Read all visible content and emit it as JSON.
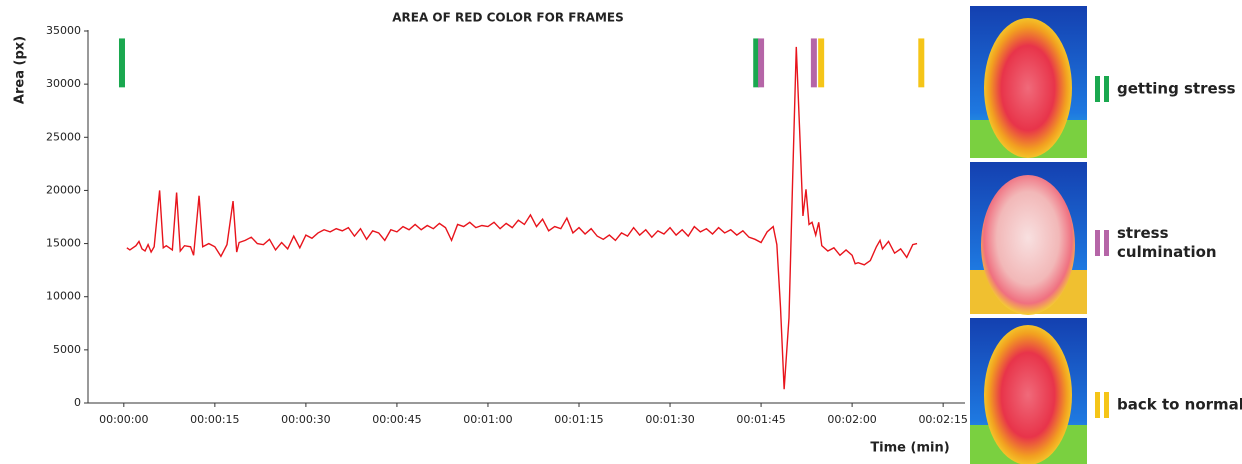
{
  "chart_data": {
    "type": "line",
    "title": "AREA OF RED COLOR FOR FRAMES",
    "y_label": "Area (px)",
    "x_label": "Time (min)",
    "xlim": [
      -5.9,
      138.6
    ],
    "ylim": [
      0,
      35000
    ],
    "yticks": [
      0,
      5000,
      10000,
      15000,
      20000,
      25000,
      30000,
      35000
    ],
    "xticks": [
      {
        "value": 0,
        "label": "00:00:00"
      },
      {
        "value": 15,
        "label": "00:00:15"
      },
      {
        "value": 30,
        "label": "00:00:30"
      },
      {
        "value": 45,
        "label": "00:00:45"
      },
      {
        "value": 60,
        "label": "00:01:00"
      },
      {
        "value": 75,
        "label": "00:01:15"
      },
      {
        "value": 90,
        "label": "00:01:30"
      },
      {
        "value": 105,
        "label": "00:01:45"
      },
      {
        "value": 120,
        "label": "00:02:00"
      },
      {
        "value": 135,
        "label": "00:02:15"
      }
    ],
    "x": [
      0.5,
      1,
      2,
      2.5,
      3,
      3.5,
      4,
      4.5,
      5,
      5.9,
      6.5,
      7,
      8,
      8.7,
      9.3,
      10,
      11,
      11.5,
      12.4,
      13,
      14,
      15,
      16,
      17,
      18,
      18.6,
      19,
      20,
      21,
      22,
      23,
      24,
      25,
      26,
      27,
      28,
      29,
      30,
      31,
      32,
      33,
      34,
      35,
      36,
      37,
      38,
      39,
      40,
      41,
      42,
      43,
      44,
      45,
      46,
      47,
      48,
      49,
      50,
      51,
      52,
      53,
      54,
      55,
      56,
      57,
      58,
      59,
      60,
      61,
      62,
      63,
      64,
      65,
      66,
      67,
      68,
      69,
      70,
      71,
      72,
      73,
      74,
      75,
      76,
      77,
      78,
      79,
      80,
      81,
      82,
      83,
      84,
      85,
      86,
      87,
      88,
      89,
      90,
      91,
      92,
      93,
      94,
      95,
      96,
      97,
      98,
      99,
      100,
      101,
      102,
      103,
      104,
      105,
      106,
      107,
      107.6,
      108.2,
      108.8,
      109.6,
      110.2,
      110.8,
      111.4,
      111.9,
      112.4,
      112.9,
      113.4,
      114,
      114.5,
      115,
      116,
      117,
      118,
      119,
      120,
      120.5,
      121,
      122,
      123,
      124,
      124.6,
      125,
      126,
      127,
      128,
      129,
      130,
      130.7
    ],
    "series": [
      {
        "color": "#e8141c",
        "values": [
          14600,
          14400,
          14800,
          15200,
          14500,
          14300,
          14900,
          14200,
          14700,
          20000,
          14600,
          14800,
          14400,
          19800,
          14300,
          14800,
          14700,
          13900,
          19500,
          14700,
          15000,
          14700,
          13800,
          14900,
          19000,
          14200,
          15100,
          15300,
          15600,
          15000,
          14900,
          15400,
          14400,
          15100,
          14500,
          15700,
          14600,
          15800,
          15500,
          16000,
          16300,
          16100,
          16400,
          16200,
          16500,
          15700,
          16400,
          15400,
          16200,
          16000,
          15300,
          16300,
          16100,
          16600,
          16300,
          16800,
          16300,
          16700,
          16400,
          16900,
          16500,
          15300,
          16800,
          16600,
          17000,
          16500,
          16700,
          16600,
          17000,
          16400,
          16900,
          16500,
          17200,
          16800,
          17700,
          16600,
          17300,
          16200,
          16600,
          16400,
          17400,
          16000,
          16500,
          15900,
          16400,
          15700,
          15400,
          15800,
          15300,
          16000,
          15700,
          16500,
          15800,
          16300,
          15600,
          16200,
          15900,
          16500,
          15800,
          16300,
          15700,
          16600,
          16100,
          16400,
          15900,
          16500,
          16000,
          16300,
          15800,
          16200,
          15600,
          15400,
          15100,
          16100,
          16600,
          14900,
          9000,
          1300,
          8000,
          21000,
          33500,
          25000,
          17600,
          20100,
          16800,
          17000,
          15800,
          17000,
          14800,
          14300,
          14600,
          13900,
          14400,
          13900,
          13100,
          13200,
          13000,
          13400,
          14700,
          15300,
          14500,
          15200,
          14100,
          14500,
          13700,
          14900,
          15000
        ]
      }
    ],
    "marker_span": [
      29700,
      34300
    ],
    "markers": [
      {
        "x": -0.3,
        "color": "#1aa84f"
      },
      {
        "x": 104.2,
        "color": "#1aa84f"
      },
      {
        "x": 105.0,
        "color": "#b565a7"
      },
      {
        "x": 113.7,
        "color": "#b565a7"
      },
      {
        "x": 114.9,
        "color": "#f5c518"
      },
      {
        "x": 131.4,
        "color": "#f5c518"
      }
    ],
    "legend": [
      {
        "label": [
          "getting stress"
        ],
        "color": "#1aa84f"
      },
      {
        "label": [
          "stress",
          "culmination"
        ],
        "color": "#b565a7"
      },
      {
        "label": [
          "back to normal"
        ],
        "color": "#f5c518"
      }
    ]
  }
}
